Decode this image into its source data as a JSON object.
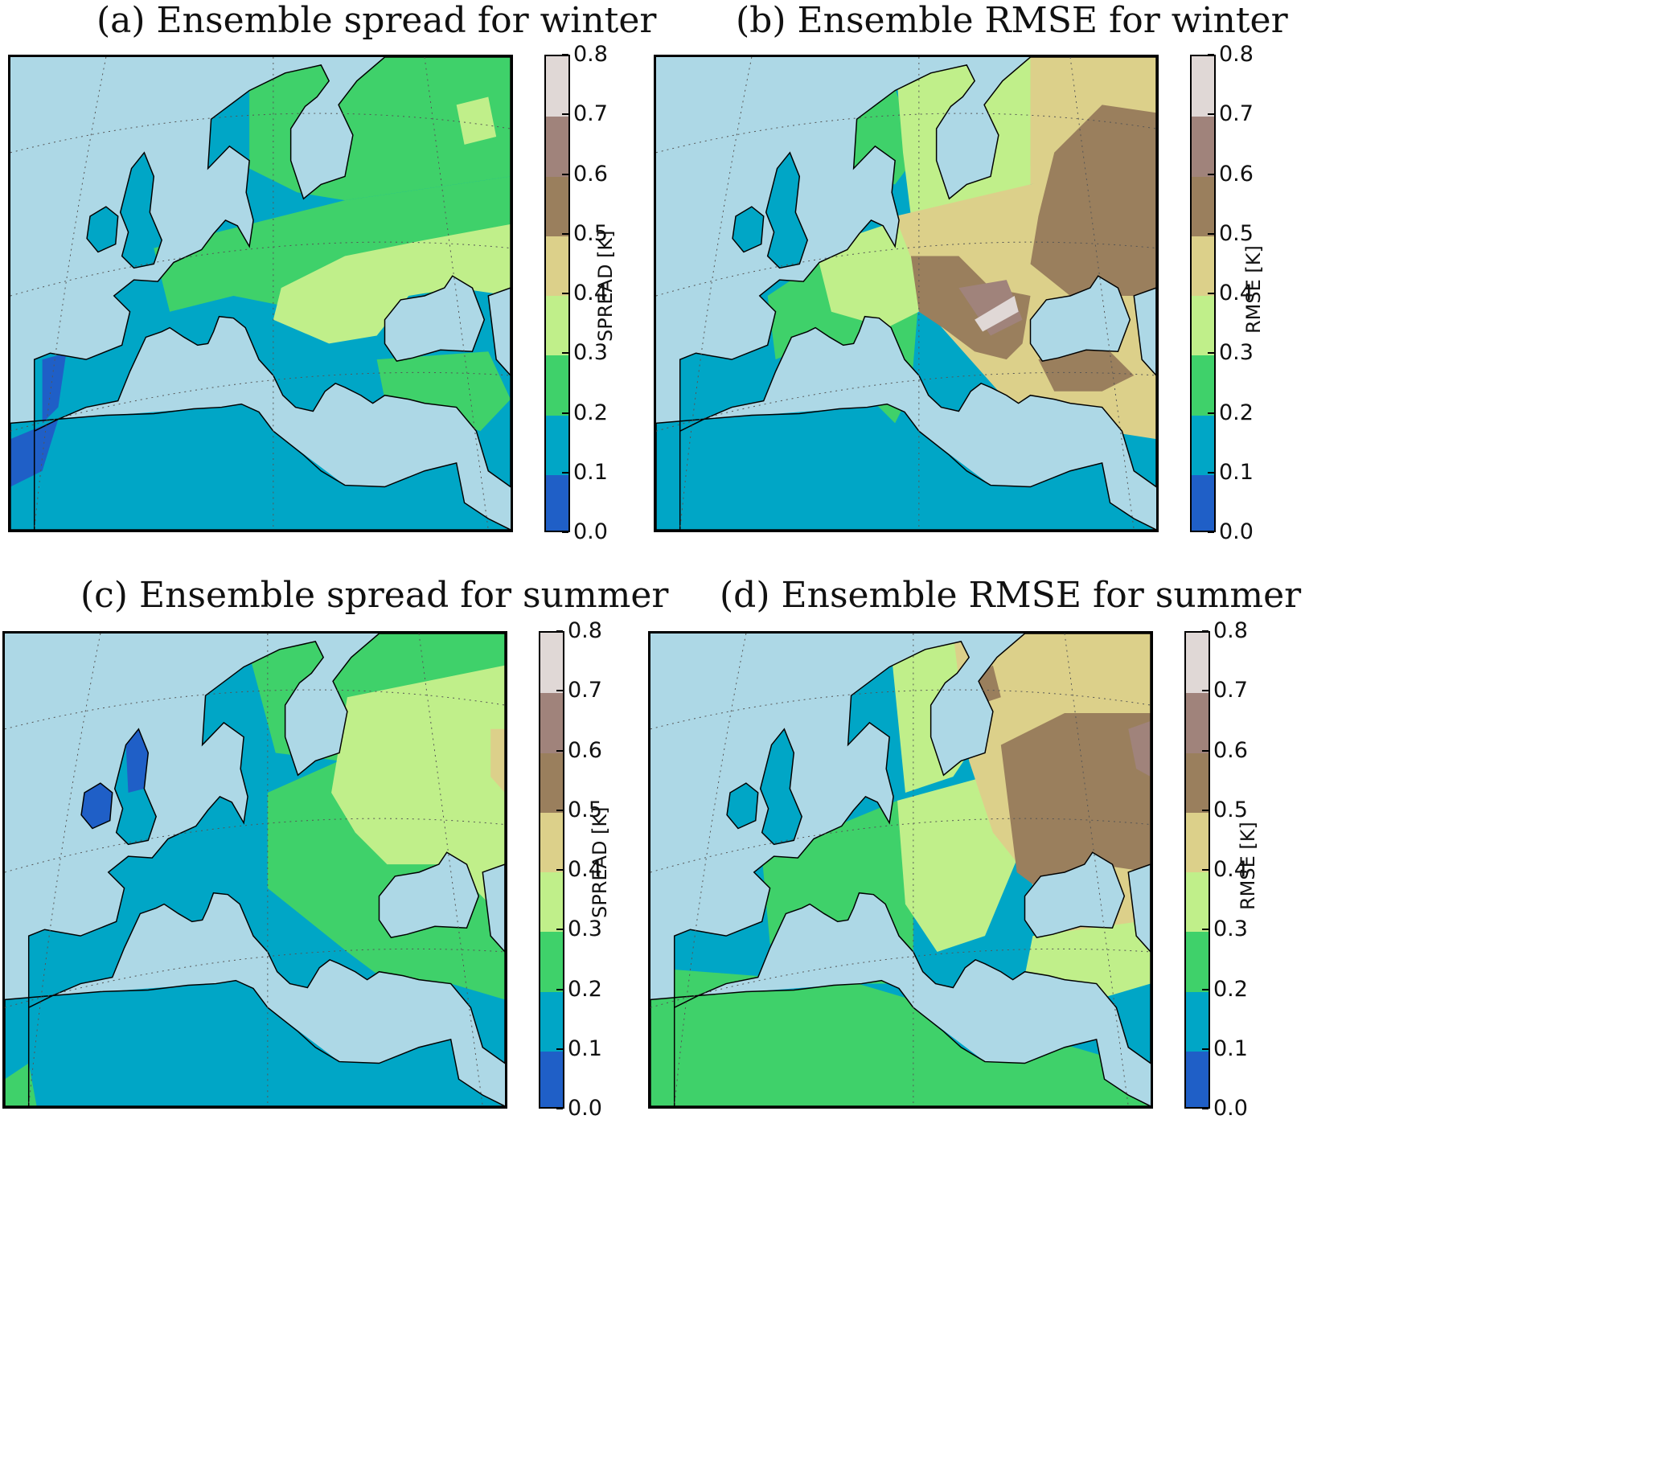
{
  "figure": {
    "levels": [
      0.0,
      0.1,
      0.2,
      0.3,
      0.4,
      0.5,
      0.6,
      0.7,
      0.8
    ],
    "level_labels": [
      "0.0",
      "0.1",
      "0.2",
      "0.3",
      "0.4",
      "0.5",
      "0.6",
      "0.7",
      "0.8"
    ],
    "colors": {
      "sea": "#add8e6",
      "band_0": "#1f5fc7",
      "band_1": "#00a6c6",
      "band_2": "#3fd16a",
      "band_3": "#c0ef8a",
      "band_4": "#dcd08a",
      "band_5": "#9a7f5d",
      "band_6": "#a0837b",
      "band_7": "#e0d8d6"
    }
  },
  "panels": [
    {
      "id": "a",
      "title": "(a) Ensemble spread for winter",
      "cbar_label": "SPREAD [K]"
    },
    {
      "id": "b",
      "title": "(b) Ensemble RMSE for winter",
      "cbar_label": "RMSE [K]"
    },
    {
      "id": "c",
      "title": "(c) Ensemble spread for summer",
      "cbar_label": "SPREAD [K]"
    },
    {
      "id": "d",
      "title": "(d) Ensemble RMSE for summer",
      "cbar_label": "RMSE [K]"
    }
  ]
}
